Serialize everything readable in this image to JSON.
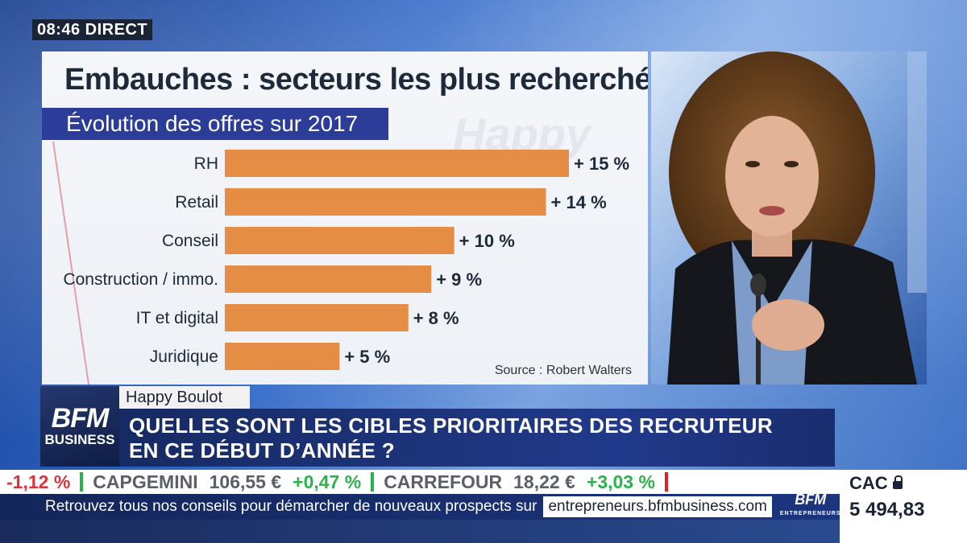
{
  "broadcast": {
    "time": "08:46",
    "live_label": "DIRECT"
  },
  "chart": {
    "title": "Embauches : secteurs les plus recherchés",
    "subtitle": "Évolution des offres sur 2017",
    "watermark": "Happy",
    "source": "Source : Robert Walters",
    "bar_color": "#e58c45"
  },
  "chart_data": {
    "type": "bar",
    "orientation": "horizontal",
    "title": "Embauches : secteurs les plus recherchés",
    "subtitle": "Évolution des offres sur 2017",
    "categories": [
      "RH",
      "Retail",
      "Conseil",
      "Construction / immo.",
      "IT et digital",
      "Juridique"
    ],
    "values": [
      15,
      14,
      10,
      9,
      8,
      5
    ],
    "labels": [
      "+ 15 %",
      "+ 14 %",
      "+ 10 %",
      "+ 9 %",
      "+ 8 %",
      "+ 5 %"
    ],
    "unit": "%",
    "xlim": [
      0,
      15
    ],
    "grid": false,
    "legend": "none"
  },
  "program": {
    "name": "Happy Boulot",
    "headline_line1": "QUELLES SONT LES CIBLES PRIORITAIRES DES RECRUTEUR",
    "headline_line2": "EN CE DÉBUT D’ANNÉE ?"
  },
  "channel_logo": {
    "brand": "BFM",
    "sub": "BUSINESS"
  },
  "ticker": {
    "lead_change": "-1,12 %",
    "items": [
      {
        "name": "CAPGEMINI",
        "price": "106,55 €",
        "change": "+0,47 %"
      },
      {
        "name": "CARREFOUR",
        "price": "18,22 €",
        "change": "+3,03 %"
      }
    ],
    "index_name": "CAC",
    "index_value": "5 494,83"
  },
  "info": {
    "text": "Retrouvez tous nos conseils pour démarcher de nouveaux prospects sur",
    "url": "entrepreneurs.bfmbusiness.com",
    "logo_main": "BFM",
    "logo_sub": "ENTREPRENEURS"
  }
}
